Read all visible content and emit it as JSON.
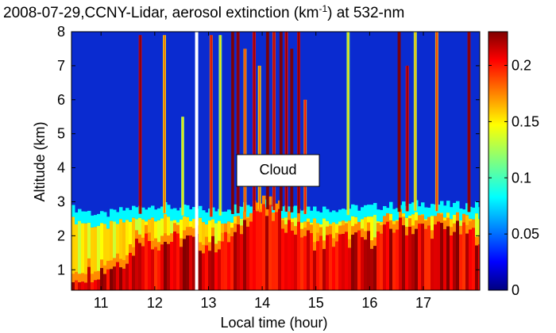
{
  "chart_data": {
    "type": "heatmap",
    "title": "2008-07-29,CCNY-Lidar, aerosol extinction (km",
    "title_superscript": "-1",
    "title_suffix": ") at 532-nm",
    "xlabel": "Local time (hour)",
    "ylabel": "Altitude (km)",
    "xlim": [
      10.45,
      18.05
    ],
    "ylim": [
      0.4,
      8
    ],
    "x_ticks": [
      11,
      12,
      13,
      14,
      15,
      16,
      17
    ],
    "x_tick_labels": [
      "11",
      "12",
      "13",
      "14",
      "15",
      "16",
      "17"
    ],
    "y_ticks": [
      1,
      2,
      3,
      4,
      5,
      6,
      7,
      8
    ],
    "y_tick_labels": [
      "1",
      "2",
      "3",
      "4",
      "5",
      "6",
      "7",
      "8"
    ],
    "colorbar": {
      "colormap": "jet",
      "range": [
        0,
        0.23
      ],
      "ticks": [
        0,
        0.05,
        0.1,
        0.15,
        0.2
      ],
      "tick_labels": [
        "0",
        "0.05",
        "0.1",
        "0.15",
        "0.2"
      ]
    },
    "annotation": {
      "text": "Cloud",
      "x": 13.75,
      "y": 3.95
    },
    "gaps": [
      {
        "time": 12.78,
        "color": "#ffffff"
      }
    ],
    "layers": {
      "boundary_layer_top_km": [
        {
          "t": 10.5,
          "h": 2.8
        },
        {
          "t": 11.0,
          "h": 2.6
        },
        {
          "t": 11.5,
          "h": 2.8
        },
        {
          "t": 12.0,
          "h": 2.9
        },
        {
          "t": 12.5,
          "h": 2.8
        },
        {
          "t": 13.0,
          "h": 2.75
        },
        {
          "t": 13.5,
          "h": 2.85
        },
        {
          "t": 14.0,
          "h": 3.0
        },
        {
          "t": 14.5,
          "h": 2.9
        },
        {
          "t": 15.0,
          "h": 2.8
        },
        {
          "t": 15.5,
          "h": 2.8
        },
        {
          "t": 16.0,
          "h": 2.85
        },
        {
          "t": 16.5,
          "h": 2.9
        },
        {
          "t": 17.0,
          "h": 2.95
        },
        {
          "t": 17.5,
          "h": 2.9
        },
        {
          "t": 18.0,
          "h": 2.9
        }
      ],
      "high_extinction_top_km": [
        {
          "t": 10.5,
          "h": 0.8
        },
        {
          "t": 11.0,
          "h": 1.0
        },
        {
          "t": 11.5,
          "h": 1.4
        },
        {
          "t": 11.7,
          "h": 2.0
        },
        {
          "t": 12.0,
          "h": 1.8
        },
        {
          "t": 12.5,
          "h": 1.9
        },
        {
          "t": 13.0,
          "h": 1.7
        },
        {
          "t": 13.5,
          "h": 2.0
        },
        {
          "t": 13.8,
          "h": 2.8
        },
        {
          "t": 14.3,
          "h": 2.5
        },
        {
          "t": 14.8,
          "h": 2.0
        },
        {
          "t": 15.0,
          "h": 1.8
        },
        {
          "t": 15.5,
          "h": 1.9
        },
        {
          "t": 16.0,
          "h": 1.9
        },
        {
          "t": 16.5,
          "h": 2.3
        },
        {
          "t": 17.0,
          "h": 2.2
        },
        {
          "t": 17.5,
          "h": 2.2
        },
        {
          "t": 18.0,
          "h": 2.0
        }
      ],
      "cloud_columns": [
        {
          "t": 11.73,
          "top": 7.9,
          "value": 0.21
        },
        {
          "t": 12.18,
          "top": 7.9,
          "value": 0.15
        },
        {
          "t": 12.52,
          "top": 5.5,
          "value": 0.12
        },
        {
          "t": 13.05,
          "top": 7.9,
          "value": 0.18
        },
        {
          "t": 13.22,
          "top": 7.9,
          "value": 0.12
        },
        {
          "t": 13.45,
          "top": 8.0,
          "value": 0.23
        },
        {
          "t": 13.55,
          "top": 8.0,
          "value": 0.22
        },
        {
          "t": 13.68,
          "top": 7.5,
          "value": 0.16
        },
        {
          "t": 13.85,
          "top": 8.0,
          "value": 0.2
        },
        {
          "t": 13.95,
          "top": 7.0,
          "value": 0.15
        },
        {
          "t": 14.1,
          "top": 8.0,
          "value": 0.23
        },
        {
          "t": 14.22,
          "top": 8.0,
          "value": 0.19
        },
        {
          "t": 14.35,
          "top": 8.0,
          "value": 0.23
        },
        {
          "t": 14.45,
          "top": 8.0,
          "value": 0.2
        },
        {
          "t": 14.55,
          "top": 7.5,
          "value": 0.23
        },
        {
          "t": 14.68,
          "top": 8.0,
          "value": 0.21
        },
        {
          "t": 14.8,
          "top": 6.0,
          "value": 0.17
        },
        {
          "t": 15.6,
          "top": 8.0,
          "value": 0.12
        },
        {
          "t": 16.55,
          "top": 8.0,
          "value": 0.23
        },
        {
          "t": 16.7,
          "top": 7.0,
          "value": 0.2
        },
        {
          "t": 16.85,
          "top": 8.0,
          "value": 0.13
        },
        {
          "t": 17.25,
          "top": 8.0,
          "value": 0.16
        },
        {
          "t": 17.85,
          "top": 8.0,
          "value": 0.22
        }
      ]
    },
    "colors": {
      "background_free_troposphere": "#0a2bd0",
      "deep_blue": "#00007f"
    }
  }
}
